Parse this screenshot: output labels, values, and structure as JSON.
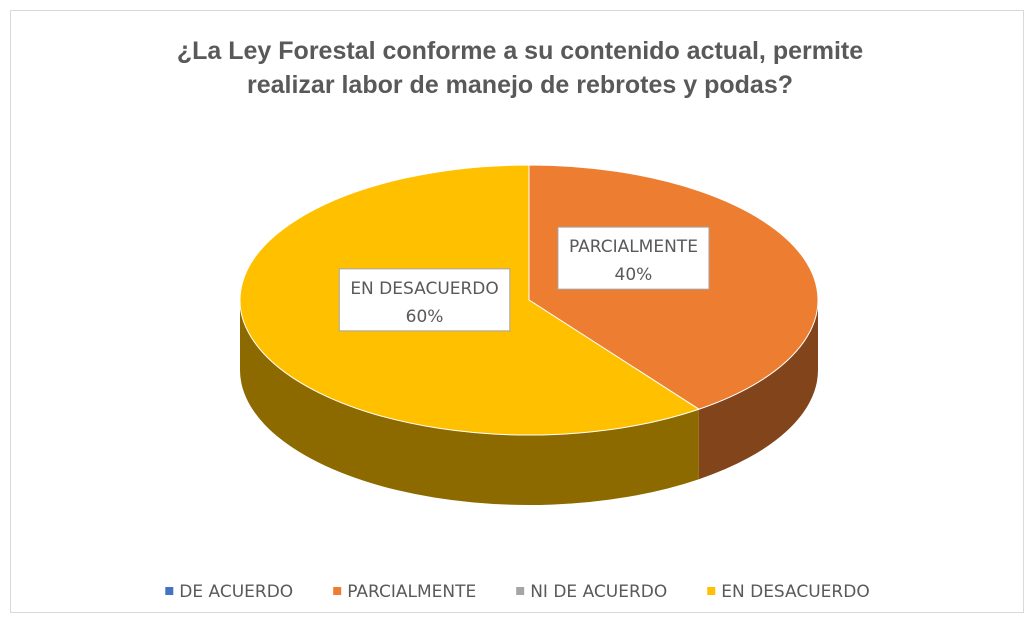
{
  "chart_data": {
    "type": "pie",
    "title": "¿La Ley Forestal conforme a su contenido actual, permite realizar labor de manejo de rebrotes y podas?",
    "categories": [
      "DE ACUERDO",
      "PARCIALMENTE",
      "NI DE ACUERDO",
      "EN DESACUERDO"
    ],
    "values": [
      0,
      40,
      0,
      60
    ],
    "value_labels": [
      null,
      "40%",
      null,
      "60%"
    ],
    "colors": [
      "#4472c4",
      "#ed7d31",
      "#a5a5a5",
      "#ffc000"
    ],
    "legend": "bottom"
  }
}
